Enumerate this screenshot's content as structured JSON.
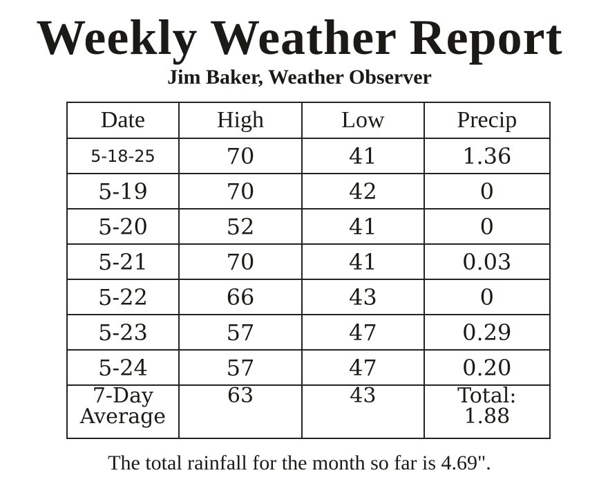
{
  "header": {
    "title": "Weekly Weather Report",
    "subtitle": "Jim Baker, Weather Observer"
  },
  "table": {
    "columns": [
      "Date",
      "High",
      "Low",
      "Precip"
    ],
    "rows": [
      [
        "5-18-25",
        "70",
        "41",
        "1.36"
      ],
      [
        "5-19",
        "70",
        "42",
        "0"
      ],
      [
        "5-20",
        "52",
        "41",
        "0"
      ],
      [
        "5-21",
        "70",
        "41",
        "0.03"
      ],
      [
        "5-22",
        "66",
        "43",
        "0"
      ],
      [
        "5-23",
        "57",
        "47",
        "0.29"
      ],
      [
        "5-24",
        "57",
        "47",
        "0.20"
      ],
      [
        "7-Day\nAverage",
        "63",
        "43",
        "Total:\n1.88"
      ]
    ]
  },
  "footer": {
    "note": "The total rainfall for the month so far is 4.69\"."
  }
}
